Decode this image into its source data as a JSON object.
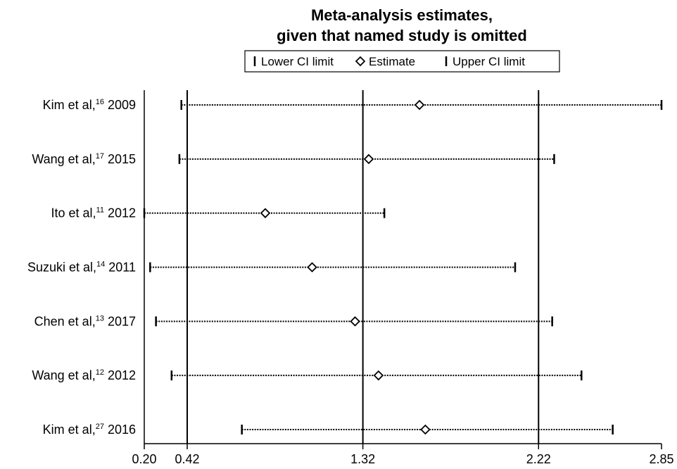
{
  "chart_data": {
    "type": "forest",
    "title": [
      "Meta-analysis estimates,",
      "given that named study is omitted"
    ],
    "legend": {
      "lower": "Lower CI limit",
      "estimate": "Estimate",
      "upper": "Upper CI limit"
    },
    "xlim": [
      0.2,
      2.85
    ],
    "x_ticks": [
      "0.20",
      "0.42",
      "1.32",
      "2.22",
      "2.85"
    ],
    "x_tick_values": [
      0.2,
      0.42,
      1.32,
      2.22,
      2.85
    ],
    "reference_lines": [
      0.42,
      1.32,
      2.22
    ],
    "studies": [
      {
        "author": "Kim et al,",
        "ref": "16",
        "year": "2009",
        "lower": 0.39,
        "estimate": 1.61,
        "upper": 2.85
      },
      {
        "author": "Wang et al,",
        "ref": "17",
        "year": "2015",
        "lower": 0.38,
        "estimate": 1.35,
        "upper": 2.3
      },
      {
        "author": "Ito et al,",
        "ref": "11",
        "year": "2012",
        "lower": 0.2,
        "estimate": 0.82,
        "upper": 1.43
      },
      {
        "author": "Suzuki et al,",
        "ref": "14",
        "year": "2011",
        "lower": 0.23,
        "estimate": 1.06,
        "upper": 2.1
      },
      {
        "author": "Chen et al,",
        "ref": "13",
        "year": "2017",
        "lower": 0.26,
        "estimate": 1.28,
        "upper": 2.29
      },
      {
        "author": "Wang et al,",
        "ref": "12",
        "year": "2012",
        "lower": 0.34,
        "estimate": 1.4,
        "upper": 2.44
      },
      {
        "author": "Kim et al,",
        "ref": "27",
        "year": "2016",
        "lower": 0.7,
        "estimate": 1.64,
        "upper": 2.6
      }
    ]
  }
}
